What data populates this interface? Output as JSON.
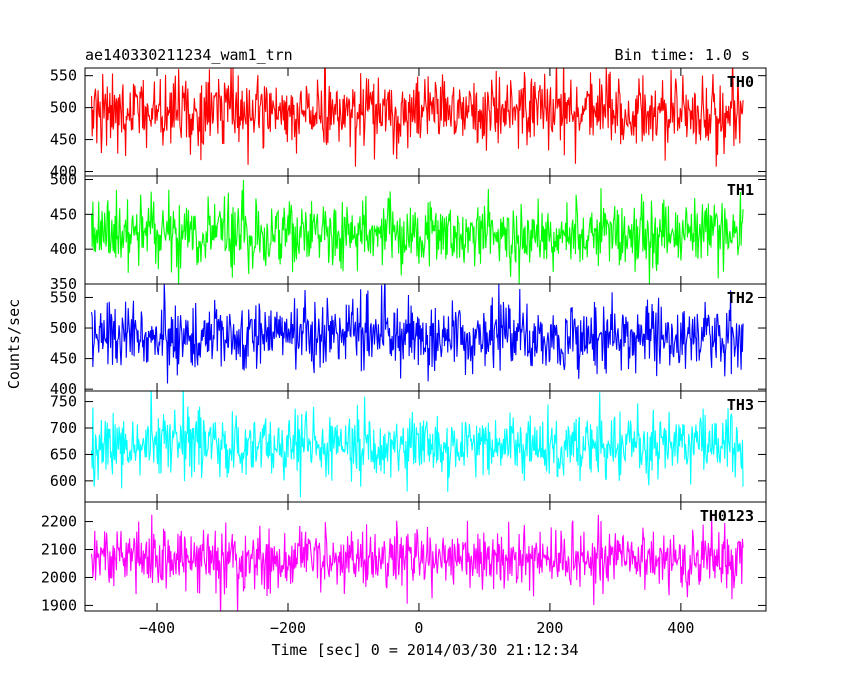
{
  "chart_data": {
    "type": "line",
    "title": "ae140330211234_wam1_trn",
    "bin_time_label": "Bin time: 1.0 s",
    "ylabel": "Counts/sec",
    "xlabel": "Time [sec] 0 = 2014/03/30 21:12:34",
    "xlim": [
      -510,
      530
    ],
    "x_start": -500,
    "x_end": 495,
    "x_step": 1,
    "x_ticks": [
      -400,
      -200,
      0,
      200,
      400
    ],
    "x_tick_labels": [
      "−400",
      "−200",
      "0",
      "200",
      "400"
    ],
    "grid": false,
    "panels": [
      {
        "name": "TH0",
        "color": "#ff0000",
        "ylim": [
          393,
          562
        ],
        "y_ticks": [
          400,
          450,
          500,
          550
        ],
        "y_tick_labels": [
          "400",
          "450",
          "500",
          "550"
        ],
        "mean": 494,
        "sd": 28
      },
      {
        "name": "TH1",
        "color": "#00ff00",
        "ylim": [
          350,
          505
        ],
        "y_ticks": [
          350,
          400,
          450,
          500
        ],
        "y_tick_labels": [
          "350",
          "400",
          "450",
          "500"
        ],
        "mean": 422,
        "sd": 24
      },
      {
        "name": "TH2",
        "color": "#0000ff",
        "ylim": [
          397,
          572
        ],
        "y_ticks": [
          400,
          450,
          500,
          550
        ],
        "y_tick_labels": [
          "400",
          "450",
          "500",
          "550"
        ],
        "mean": 487,
        "sd": 27
      },
      {
        "name": "TH3",
        "color": "#00ffff",
        "ylim": [
          560,
          770
        ],
        "y_ticks": [
          600,
          650,
          700,
          750
        ],
        "y_tick_labels": [
          "600",
          "650",
          "700",
          "750"
        ],
        "mean": 666,
        "sd": 30
      },
      {
        "name": "TH0123",
        "color": "#ff00ff",
        "ylim": [
          1880,
          2270
        ],
        "y_ticks": [
          1900,
          2000,
          2100,
          2200
        ],
        "y_tick_labels": [
          "1900",
          "2000",
          "2100",
          "2200"
        ],
        "mean": 2065,
        "sd": 55
      }
    ]
  }
}
